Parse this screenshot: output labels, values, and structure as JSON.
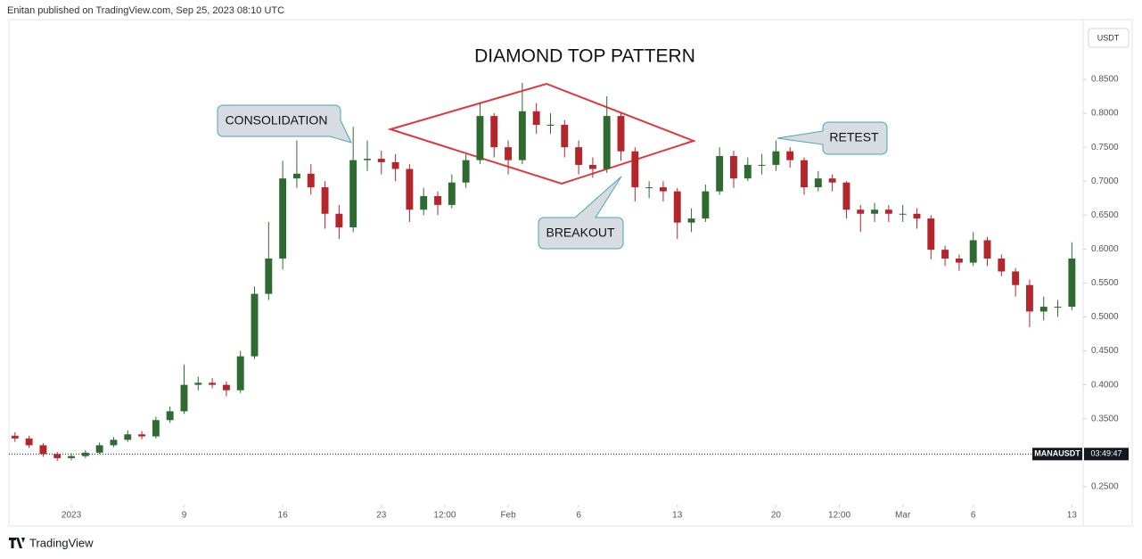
{
  "chart_data": {
    "type": "candlestick",
    "header": "Enitan published on TradingView.com, Sep 25, 2023 08:10 UTC",
    "title": "DIAMOND TOP PATTERN",
    "currency": "USDT",
    "symbol": "MANAUSDT",
    "countdown": "03:49:47",
    "price_line": 0.298,
    "brand": "TradingView",
    "annotations": [
      "CONSOLIDATION",
      "BREAKOUT",
      "RETEST"
    ],
    "up_color": "#2e6b30",
    "down_color": "#b3262c",
    "grid": false,
    "xlim": [
      -4.43,
      71.8
    ],
    "ylim": [
      0.192,
      0.938
    ],
    "xticks": [
      {
        "value": 0,
        "label": "2023"
      },
      {
        "value": 8,
        "label": "9"
      },
      {
        "value": 15,
        "label": "16"
      },
      {
        "value": 22,
        "label": "23"
      },
      {
        "value": 26.5,
        "label": "12:00"
      },
      {
        "value": 31,
        "label": "Feb"
      },
      {
        "value": 36,
        "label": "6"
      },
      {
        "value": 43,
        "label": "13"
      },
      {
        "value": 50,
        "label": "20"
      },
      {
        "value": 54.5,
        "label": "12:00"
      },
      {
        "value": 59,
        "label": "Mar"
      },
      {
        "value": 64,
        "label": "6"
      },
      {
        "value": 71,
        "label": "13"
      }
    ],
    "yticks": [
      {
        "value": 0.25,
        "label": "0.2500"
      },
      {
        "value": 0.35,
        "label": "0.3500"
      },
      {
        "value": 0.4,
        "label": "0.4000"
      },
      {
        "value": 0.45,
        "label": "0.4500"
      },
      {
        "value": 0.5,
        "label": "0.5000"
      },
      {
        "value": 0.55,
        "label": "0.5500"
      },
      {
        "value": 0.6,
        "label": "0.6000"
      },
      {
        "value": 0.65,
        "label": "0.6500"
      },
      {
        "value": 0.7,
        "label": "0.7000"
      },
      {
        "value": 0.75,
        "label": "0.7500"
      },
      {
        "value": 0.8,
        "label": "0.8000"
      },
      {
        "value": 0.85,
        "label": "0.8500"
      }
    ],
    "x": [
      -4,
      -3,
      -2,
      -1,
      0,
      1,
      2,
      3,
      4,
      5,
      6,
      7,
      8,
      9,
      10,
      11,
      12,
      13,
      14,
      15,
      16,
      17,
      18,
      19,
      20,
      21,
      22,
      23,
      24,
      25,
      26,
      27,
      28,
      29,
      30,
      31,
      32,
      33,
      34,
      35,
      36,
      37,
      38,
      39,
      40,
      41,
      42,
      43,
      44,
      45,
      46,
      47,
      48,
      49,
      50,
      51,
      52,
      53,
      54,
      55,
      56,
      57,
      58,
      59,
      60,
      61,
      62,
      63,
      64,
      65,
      66,
      67,
      68,
      69,
      70,
      71
    ],
    "open": [
      0.325,
      0.321,
      0.311,
      0.298,
      0.292,
      0.295,
      0.3,
      0.311,
      0.319,
      0.327,
      0.324,
      0.348,
      0.361,
      0.4,
      0.403,
      0.4,
      0.392,
      0.442,
      0.534,
      0.586,
      0.704,
      0.711,
      0.691,
      0.652,
      0.632,
      0.731,
      0.733,
      0.728,
      0.718,
      0.658,
      0.678,
      0.665,
      0.698,
      0.731,
      0.796,
      0.75,
      0.731,
      0.803,
      0.783,
      0.783,
      0.75,
      0.724,
      0.718,
      0.796,
      0.744,
      0.691,
      0.691,
      0.685,
      0.639,
      0.645,
      0.685,
      0.737,
      0.704,
      0.724,
      0.724,
      0.744,
      0.731,
      0.691,
      0.704,
      0.698,
      0.658,
      0.652,
      0.658,
      0.652,
      0.652,
      0.645,
      0.599,
      0.586,
      0.58,
      0.613,
      0.586,
      0.567,
      0.547,
      0.508,
      0.515,
      0.515
    ],
    "high": [
      0.33,
      0.325,
      0.314,
      0.301,
      0.299,
      0.304,
      0.315,
      0.323,
      0.333,
      0.332,
      0.353,
      0.368,
      0.43,
      0.412,
      0.41,
      0.405,
      0.45,
      0.545,
      0.64,
      0.73,
      0.76,
      0.725,
      0.7,
      0.665,
      0.78,
      0.76,
      0.745,
      0.74,
      0.725,
      0.69,
      0.685,
      0.71,
      0.74,
      0.815,
      0.8,
      0.76,
      0.845,
      0.815,
      0.8,
      0.79,
      0.76,
      0.735,
      0.825,
      0.8,
      0.75,
      0.7,
      0.7,
      0.69,
      0.66,
      0.695,
      0.75,
      0.745,
      0.735,
      0.74,
      0.76,
      0.75,
      0.735,
      0.715,
      0.71,
      0.7,
      0.665,
      0.668,
      0.665,
      0.665,
      0.66,
      0.65,
      0.605,
      0.592,
      0.625,
      0.618,
      0.592,
      0.572,
      0.555,
      0.53,
      0.525,
      0.61
    ],
    "low": [
      0.316,
      0.307,
      0.294,
      0.288,
      0.289,
      0.292,
      0.298,
      0.308,
      0.316,
      0.32,
      0.321,
      0.344,
      0.357,
      0.392,
      0.395,
      0.383,
      0.388,
      0.438,
      0.525,
      0.57,
      0.69,
      0.68,
      0.63,
      0.615,
      0.625,
      0.715,
      0.71,
      0.7,
      0.64,
      0.65,
      0.65,
      0.66,
      0.69,
      0.725,
      0.735,
      0.71,
      0.725,
      0.77,
      0.77,
      0.735,
      0.71,
      0.705,
      0.712,
      0.73,
      0.67,
      0.675,
      0.67,
      0.615,
      0.625,
      0.64,
      0.68,
      0.69,
      0.7,
      0.71,
      0.715,
      0.72,
      0.68,
      0.685,
      0.685,
      0.645,
      0.625,
      0.64,
      0.64,
      0.64,
      0.63,
      0.585,
      0.575,
      0.568,
      0.575,
      0.575,
      0.56,
      0.53,
      0.485,
      0.495,
      0.5,
      0.51
    ],
    "close": [
      0.321,
      0.311,
      0.298,
      0.292,
      0.295,
      0.3,
      0.311,
      0.319,
      0.327,
      0.324,
      0.348,
      0.361,
      0.4,
      0.403,
      0.4,
      0.392,
      0.442,
      0.534,
      0.586,
      0.704,
      0.711,
      0.691,
      0.652,
      0.632,
      0.731,
      0.733,
      0.728,
      0.718,
      0.658,
      0.678,
      0.665,
      0.698,
      0.731,
      0.796,
      0.75,
      0.731,
      0.803,
      0.783,
      0.783,
      0.75,
      0.724,
      0.718,
      0.796,
      0.744,
      0.691,
      0.691,
      0.685,
      0.639,
      0.645,
      0.685,
      0.737,
      0.704,
      0.724,
      0.724,
      0.744,
      0.731,
      0.691,
      0.704,
      0.698,
      0.658,
      0.652,
      0.658,
      0.652,
      0.652,
      0.645,
      0.599,
      0.586,
      0.58,
      0.613,
      0.586,
      0.567,
      0.547,
      0.508,
      0.515,
      0.515,
      0.586
    ]
  }
}
